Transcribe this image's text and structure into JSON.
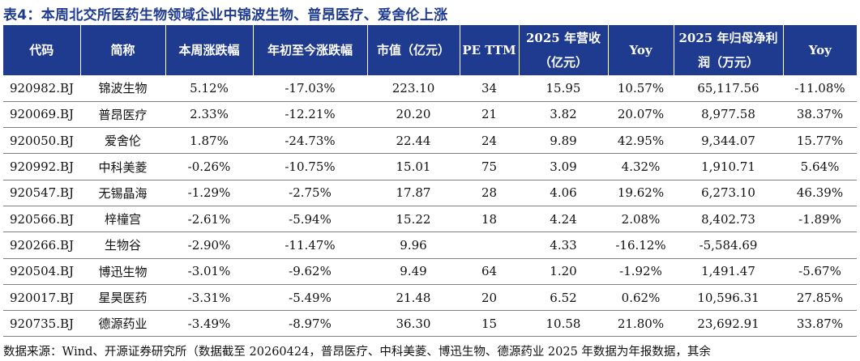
{
  "title": "表4：本周北交所医药生物领域企业中锦波生物、普昂医疗、爱舍伦上涨",
  "headers": [
    "代码",
    "简称",
    "本周涨跌幅",
    "年初至今涨跌幅",
    "市值（亿元）",
    "PE TTM",
    "2025 年营收（亿元）",
    "Yoy",
    "2025 年归母净利润（万元）",
    "Yoy"
  ],
  "rows": [
    [
      "920982.BJ",
      "锦波生物",
      "5.12%",
      "-17.03%",
      "223.10",
      "34",
      "15.95",
      "10.57%",
      "65,117.56",
      "-11.08%"
    ],
    [
      "920069.BJ",
      "普昂医疗",
      "2.33%",
      "-12.21%",
      "20.20",
      "21",
      "3.82",
      "20.07%",
      "8,977.58",
      "38.37%"
    ],
    [
      "920050.BJ",
      "爱舍伦",
      "1.87%",
      "-24.73%",
      "22.44",
      "24",
      "9.89",
      "42.95%",
      "9,344.07",
      "15.77%"
    ],
    [
      "920992.BJ",
      "中科美菱",
      "-0.26%",
      "-10.75%",
      "15.01",
      "75",
      "3.09",
      "4.32%",
      "1,910.71",
      "5.64%"
    ],
    [
      "920547.BJ",
      "无锡晶海",
      "-1.29%",
      "-2.75%",
      "17.87",
      "28",
      "4.06",
      "19.62%",
      "6,273.10",
      "46.39%"
    ],
    [
      "920566.BJ",
      "梓橦宫",
      "-2.61%",
      "-5.94%",
      "15.22",
      "18",
      "4.24",
      "2.08%",
      "8,402.73",
      "-1.89%"
    ],
    [
      "920266.BJ",
      "生物谷",
      "-2.90%",
      "-11.47%",
      "9.96",
      "",
      "4.33",
      "-16.12%",
      "-5,584.69",
      ""
    ],
    [
      "920504.BJ",
      "博迅生物",
      "-3.01%",
      "-9.62%",
      "9.49",
      "64",
      "1.20",
      "-1.92%",
      "1,491.47",
      "-5.67%"
    ],
    [
      "920017.BJ",
      "星昊医药",
      "-3.31%",
      "-5.49%",
      "21.48",
      "20",
      "6.52",
      "0.62%",
      "10,596.31",
      "27.85%"
    ],
    [
      "920735.BJ",
      "德源药业",
      "-3.49%",
      "-8.97%",
      "36.30",
      "15",
      "10.58",
      "21.80%",
      "23,692.91",
      "33.87%"
    ]
  ],
  "footer": "数据来源：Wind、开源证券研究所（数据截至 20260424，普昂医疗、中科美菱、博迅生物、德源药业 2025 年数据为年报数据，其余",
  "colors": {
    "header_bg": "#1f3b8f",
    "header_text": "#ffffff",
    "title_text": "#1f3b8f",
    "row_divider": "#808080"
  }
}
